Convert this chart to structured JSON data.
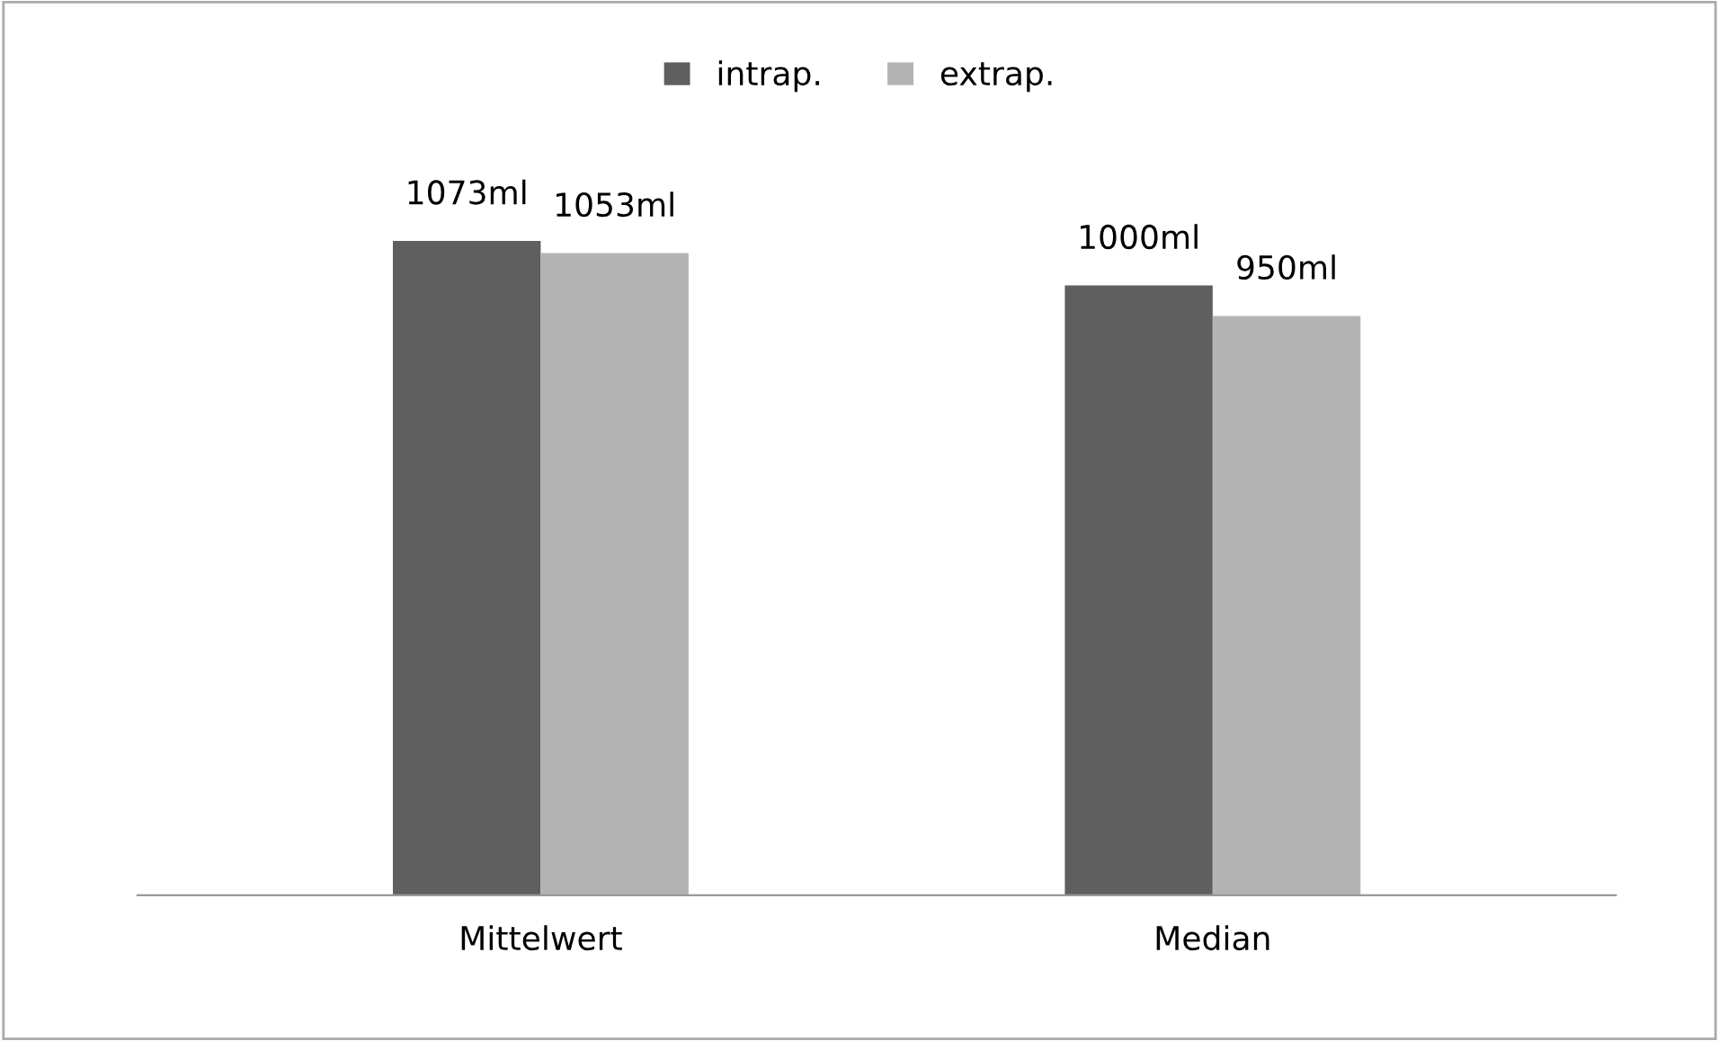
{
  "chart_data": {
    "type": "bar",
    "categories": [
      "Mittelwert",
      "Median"
    ],
    "series": [
      {
        "name": "intrap.",
        "color": "#5f5f5f",
        "values": [
          1073,
          1000
        ],
        "value_labels": [
          "1073ml",
          "1000ml"
        ]
      },
      {
        "name": "extrap.",
        "color": "#b3b3b3",
        "values": [
          1053,
          950
        ],
        "value_labels": [
          "1053ml",
          "950ml"
        ]
      }
    ],
    "legend": "top",
    "grid": false
  }
}
